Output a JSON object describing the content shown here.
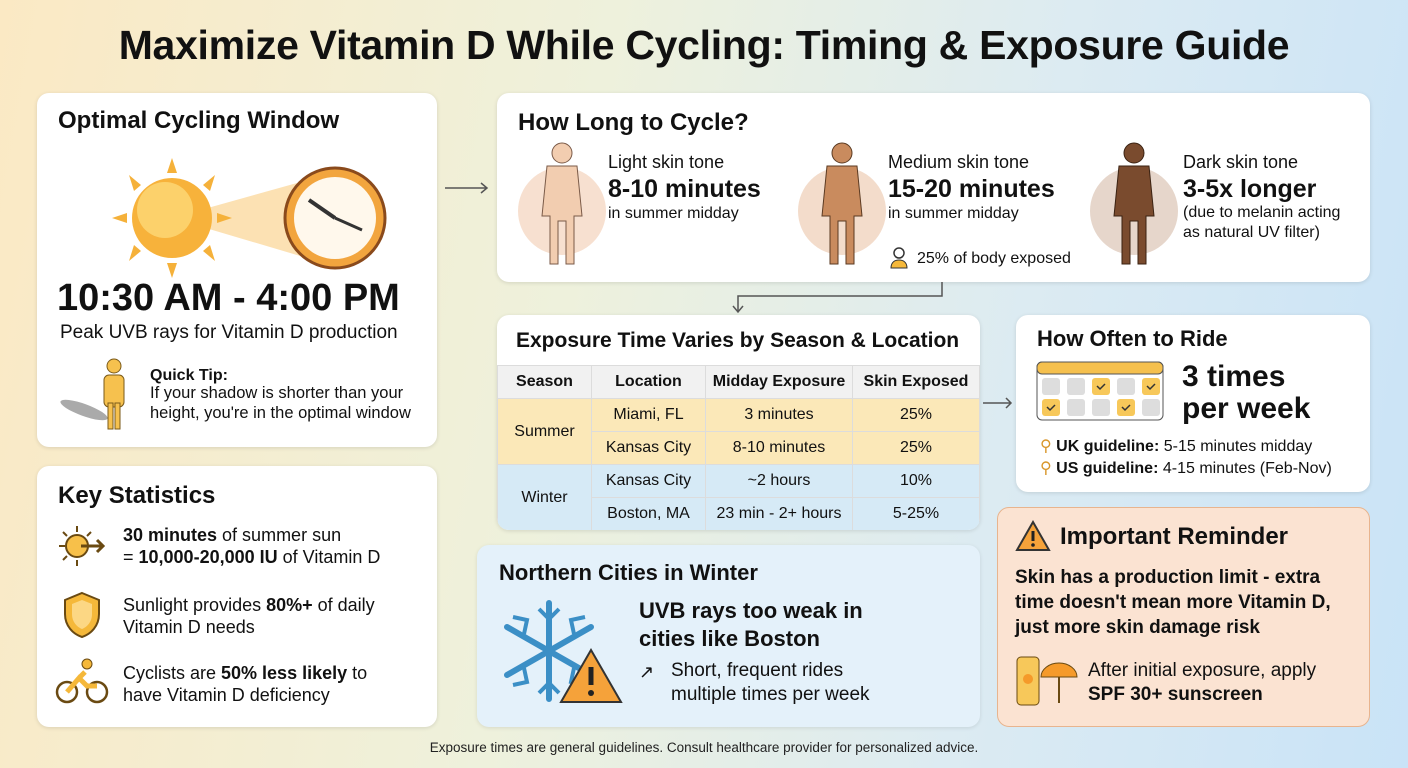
{
  "title": "Maximize Vitamin D While Cycling: Timing & Exposure Guide",
  "window": {
    "heading": "Optimal Cycling Window",
    "time": "10:30 AM - 4:00 PM",
    "subtitle": "Peak UVB rays for Vitamin D production",
    "tip_label": "Quick Tip:",
    "tip_text": "If your shadow is shorter than your height, you're in the optimal window"
  },
  "stats": {
    "heading": "Key Statistics",
    "items": [
      {
        "icon": "sun-arrow-icon",
        "bold": "30 minutes",
        "text": " of summer sun",
        "line2_pre": "= ",
        "line2_bold": "10,000-20,000 IU",
        "line2_post": " of Vitamin D"
      },
      {
        "icon": "shield-icon",
        "pre": "Sunlight provides ",
        "bold": "80%+",
        "post": " of daily",
        "line2": "Vitamin D needs"
      },
      {
        "icon": "cyclist-icon",
        "pre": "Cyclists are ",
        "bold": "50% less likely",
        "post": " to",
        "line2": "have Vitamin D deficiency"
      }
    ]
  },
  "duration": {
    "heading": "How Long to Cycle?",
    "tones": [
      {
        "label": "Light skin tone",
        "time": "8-10 minutes",
        "note": "in summer midday",
        "color": "#f2cdb0"
      },
      {
        "label": "Medium skin tone",
        "time": "15-20 minutes",
        "note": "in summer midday",
        "color": "#c98b5e"
      },
      {
        "label": "Dark skin tone",
        "time": "3-5x longer",
        "note": "(due to melanin acting as natural UV filter)",
        "color": "#7a4b2e"
      }
    ],
    "body_exposed": "25% of body exposed"
  },
  "season_table": {
    "heading": "Exposure Time Varies by Season & Location",
    "columns": [
      "Season",
      "Location",
      "Midday Exposure",
      "Skin Exposed"
    ],
    "rows": [
      [
        "Summer",
        "Miami, FL",
        "3 minutes",
        "25%"
      ],
      [
        "Summer",
        "Kansas City",
        "8-10 minutes",
        "25%"
      ],
      [
        "Winter",
        "Kansas City",
        "~2 hours",
        "10%"
      ],
      [
        "Winter",
        "Boston, MA",
        "23 min - 2+ hours",
        "5-25%"
      ]
    ]
  },
  "frequency": {
    "heading": "How Often to Ride",
    "value_line1": "3 times",
    "value_line2": "per week",
    "uk_label": "UK guideline:",
    "uk_text": " 5-15 minutes midday",
    "us_label": "US guideline:",
    "us_text": " 4-15 minutes (Feb-Nov)"
  },
  "northern": {
    "heading": "Northern Cities in Winter",
    "main": "UVB rays too weak in cities like Boston",
    "tip": "Short, frequent rides multiple times per week"
  },
  "reminder": {
    "heading": "Important Reminder",
    "main": "Skin has a production limit - extra time doesn't mean more Vitamin D, just more skin damage risk",
    "sun_pre": "After initial exposure, apply",
    "sun_bold": "SPF 30+ sunscreen"
  },
  "footer": "Exposure times are general guidelines. Consult healthcare provider for personalized advice.",
  "colors": {
    "accent": "#f5b82e",
    "summer": "#fbe8b8",
    "winter": "#d6eaf6",
    "reminder_bg": "#fbe3d2"
  }
}
